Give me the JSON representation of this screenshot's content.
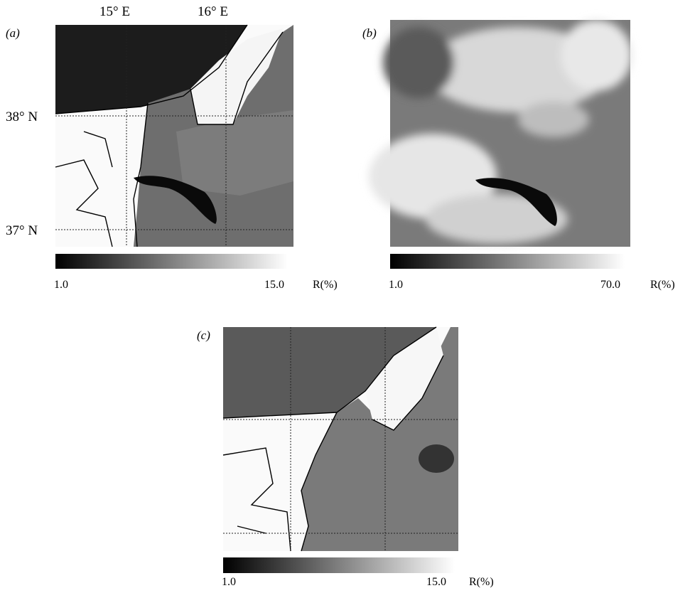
{
  "figure": {
    "axes": {
      "lon": [
        "15° E",
        "16° E"
      ],
      "lat": [
        "38° N",
        "37° N"
      ]
    },
    "panels": [
      {
        "label": "(a)",
        "colorbar": {
          "min": "1.0",
          "max": "15.0",
          "unit": "R(%)"
        }
      },
      {
        "label": "(b)",
        "colorbar": {
          "min": "1.0",
          "max": "70.0",
          "unit": "R(%)"
        }
      },
      {
        "label": "(c)",
        "colorbar": {
          "min": "1.0",
          "max": "15.0",
          "unit": "R(%)"
        }
      }
    ]
  }
}
